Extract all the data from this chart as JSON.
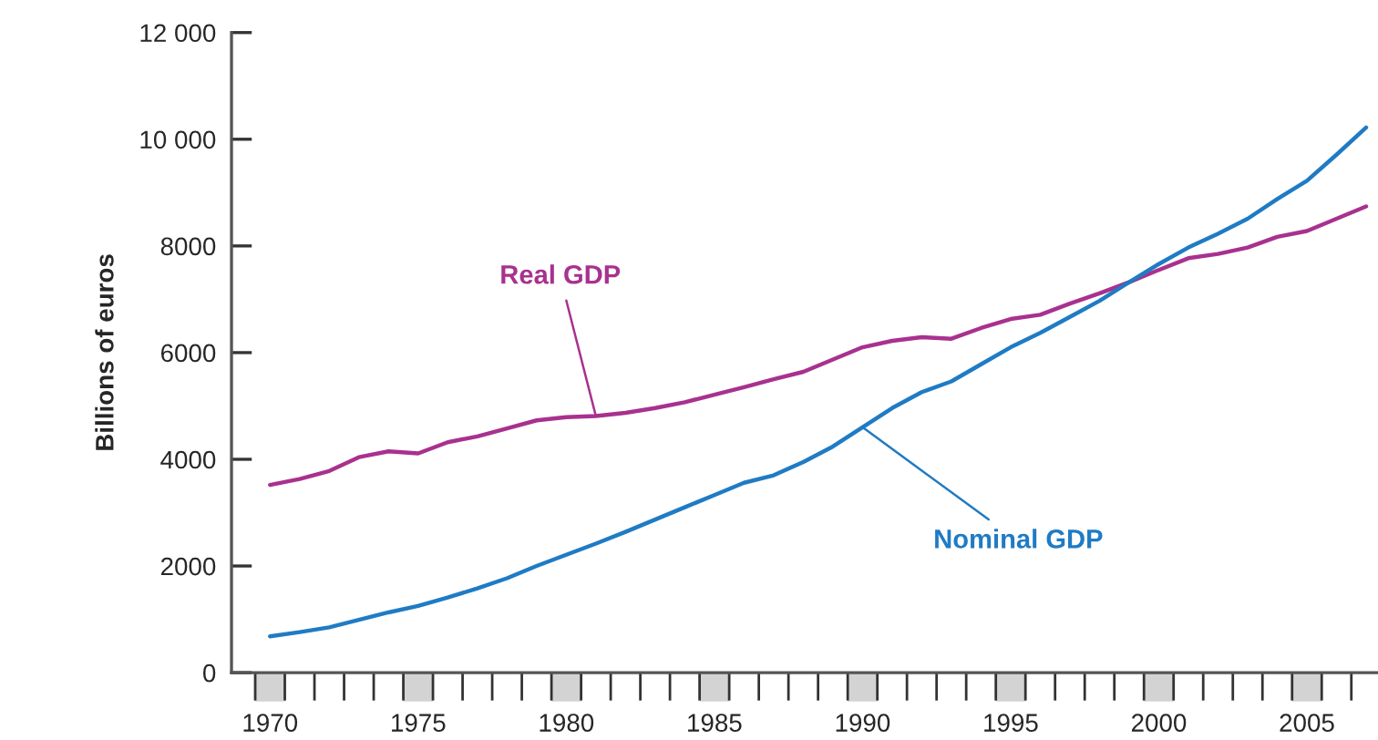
{
  "chart_data": {
    "type": "line",
    "ylabel": "Billions of euros",
    "x": [
      1970,
      1971,
      1972,
      1973,
      1974,
      1975,
      1976,
      1977,
      1978,
      1979,
      1980,
      1981,
      1982,
      1983,
      1984,
      1985,
      1986,
      1987,
      1988,
      1989,
      1990,
      1991,
      1992,
      1993,
      1994,
      1995,
      1996,
      1997,
      1998,
      1999,
      2000,
      2001,
      2002,
      2003,
      2004,
      2005,
      2006,
      2007
    ],
    "series": [
      {
        "name": "Real GDP",
        "color": "#a8318f",
        "values": [
          3520,
          3630,
          3780,
          4040,
          4150,
          4110,
          4320,
          4430,
          4580,
          4730,
          4790,
          4810,
          4870,
          4960,
          5070,
          5210,
          5350,
          5500,
          5640,
          5870,
          6100,
          6220,
          6290,
          6260,
          6460,
          6630,
          6710,
          6920,
          7110,
          7320,
          7550,
          7770,
          7850,
          7970,
          8170,
          8280,
          8510,
          8740
        ]
      },
      {
        "name": "Nominal GDP",
        "color": "#1f7bc4",
        "values": [
          680,
          760,
          850,
          990,
          1130,
          1250,
          1410,
          1580,
          1770,
          2000,
          2210,
          2420,
          2640,
          2870,
          3100,
          3330,
          3560,
          3700,
          3950,
          4240,
          4600,
          4960,
          5260,
          5460,
          5780,
          6100,
          6370,
          6670,
          6970,
          7320,
          7660,
          7970,
          8230,
          8510,
          8880,
          9220,
          9710,
          10220
        ]
      }
    ],
    "xlim": [
      1968.7,
      2007.4
    ],
    "xticks": [
      {
        "value": 1970,
        "label": "1970"
      },
      {
        "value": 1975,
        "label": "1975"
      },
      {
        "value": 1980,
        "label": "1980"
      },
      {
        "value": 1985,
        "label": "1985"
      },
      {
        "value": 1990,
        "label": "1990"
      },
      {
        "value": 1995,
        "label": "1995"
      },
      {
        "value": 2000,
        "label": "2000"
      },
      {
        "value": 2005,
        "label": "2005"
      },
      {
        "value": 1969.5,
        "label": null
      },
      {
        "value": 1970.5,
        "label": null
      },
      {
        "value": 1971.5,
        "label": null
      },
      {
        "value": 1972.5,
        "label": null
      },
      {
        "value": 1973.5,
        "label": null
      },
      {
        "value": 1974.5,
        "label": null
      },
      {
        "value": 1975.5,
        "label": null
      },
      {
        "value": 1976.5,
        "label": null
      },
      {
        "value": 1977.5,
        "label": null
      },
      {
        "value": 1978.5,
        "label": null
      },
      {
        "value": 1979.5,
        "label": null
      },
      {
        "value": 1980.5,
        "label": null
      },
      {
        "value": 1981.5,
        "label": null
      },
      {
        "value": 1982.5,
        "label": null
      },
      {
        "value": 1983.5,
        "label": null
      },
      {
        "value": 1984.5,
        "label": null
      },
      {
        "value": 1985.5,
        "label": null
      },
      {
        "value": 1986.5,
        "label": null
      },
      {
        "value": 1987.5,
        "label": null
      },
      {
        "value": 1988.5,
        "label": null
      },
      {
        "value": 1989.5,
        "label": null
      },
      {
        "value": 1990.5,
        "label": null
      },
      {
        "value": 1991.5,
        "label": null
      },
      {
        "value": 1992.5,
        "label": null
      },
      {
        "value": 1993.5,
        "label": null
      },
      {
        "value": 1994.5,
        "label": null
      },
      {
        "value": 1995.5,
        "label": null
      },
      {
        "value": 1996.5,
        "label": null
      },
      {
        "value": 1997.5,
        "label": null
      },
      {
        "value": 1998.5,
        "label": null
      },
      {
        "value": 1999.5,
        "label": null
      },
      {
        "value": 2000.5,
        "label": null
      },
      {
        "value": 2001.5,
        "label": null
      },
      {
        "value": 2002.5,
        "label": null
      },
      {
        "value": 2003.5,
        "label": null
      },
      {
        "value": 2004.5,
        "label": null
      },
      {
        "value": 2005.5,
        "label": null
      },
      {
        "value": 2006.5,
        "label": null
      }
    ],
    "ylim": [
      0,
      12000
    ],
    "yticks": [
      0,
      2000,
      4000,
      6000,
      8000,
      {
        "value": 10000,
        "label": "10 000"
      },
      {
        "value": 12000,
        "label": "12 000"
      }
    ],
    "grid": false,
    "legend": false,
    "line_style": "solid",
    "marker": "none"
  }
}
